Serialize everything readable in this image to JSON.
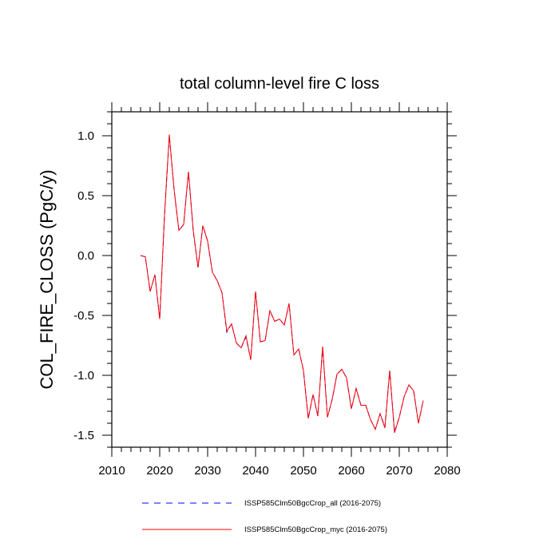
{
  "chart_data": {
    "type": "line",
    "title": "total column-level fire C loss",
    "xlabel": "",
    "ylabel": "COL_FIRE_CLOSS  (PgC/y)",
    "xlim": [
      2010,
      2080
    ],
    "ylim": [
      -1.6,
      1.2
    ],
    "x_ticks": [
      2010,
      2020,
      2030,
      2040,
      2050,
      2060,
      2070,
      2080
    ],
    "x_tick_labels": [
      "2010",
      "2020",
      "2030",
      "2040",
      "2050",
      "2060",
      "2070",
      "2080"
    ],
    "y_ticks": [
      -1.5,
      -1.0,
      -0.5,
      0.0,
      0.5,
      1.0
    ],
    "y_tick_labels": [
      "-1.5",
      "-1.0",
      "-0.5",
      "0.0",
      "0.5",
      "1.0"
    ],
    "grid": false,
    "legend_position": "bottom",
    "x": [
      2016,
      2017,
      2018,
      2019,
      2020,
      2021,
      2022,
      2023,
      2024,
      2025,
      2026,
      2027,
      2028,
      2029,
      2030,
      2031,
      2032,
      2033,
      2034,
      2035,
      2036,
      2037,
      2038,
      2039,
      2040,
      2041,
      2042,
      2043,
      2044,
      2045,
      2046,
      2047,
      2048,
      2049,
      2050,
      2051,
      2052,
      2053,
      2054,
      2055,
      2056,
      2057,
      2058,
      2059,
      2060,
      2061,
      2062,
      2063,
      2064,
      2065,
      2066,
      2067,
      2068,
      2069,
      2070,
      2071,
      2072,
      2073,
      2074,
      2075
    ],
    "series": [
      {
        "name": "ISSP585Clm50BgcCrop_all (2016-2075)",
        "color": "#0000ff",
        "dash": "dashed",
        "values": [
          0.0,
          -0.01,
          -0.3,
          -0.16,
          -0.53,
          0.33,
          1.0,
          0.55,
          0.21,
          0.26,
          0.7,
          0.2,
          -0.1,
          0.25,
          0.12,
          -0.14,
          -0.21,
          -0.31,
          -0.64,
          -0.57,
          -0.73,
          -0.77,
          -0.68,
          -0.87,
          -0.3,
          -0.72,
          -0.71,
          -0.46,
          -0.55,
          -0.53,
          -0.58,
          -0.4,
          -0.83,
          -0.78,
          -0.96,
          -1.36,
          -1.16,
          -1.34,
          -0.76,
          -1.35,
          -1.2,
          -0.99,
          -0.95,
          -1.02,
          -1.28,
          -1.11,
          -1.25,
          -1.25,
          -1.37,
          -1.45,
          -1.32,
          -1.43,
          -0.96,
          -1.47,
          -1.35,
          -1.18,
          -1.08,
          -1.13,
          -1.4,
          -1.21
        ]
      },
      {
        "name": "ISSP585Clm50BgcCrop_myc (2016-2075)",
        "color": "#ff0000",
        "dash": "solid",
        "values": [
          0.0,
          -0.01,
          -0.3,
          -0.16,
          -0.53,
          0.34,
          1.01,
          0.55,
          0.21,
          0.26,
          0.7,
          0.21,
          -0.1,
          0.25,
          0.12,
          -0.14,
          -0.21,
          -0.31,
          -0.63,
          -0.57,
          -0.73,
          -0.77,
          -0.67,
          -0.87,
          -0.3,
          -0.72,
          -0.71,
          -0.46,
          -0.55,
          -0.53,
          -0.58,
          -0.4,
          -0.83,
          -0.78,
          -0.96,
          -1.36,
          -1.16,
          -1.34,
          -0.76,
          -1.35,
          -1.2,
          -0.99,
          -0.95,
          -1.02,
          -1.28,
          -1.11,
          -1.25,
          -1.25,
          -1.37,
          -1.45,
          -1.32,
          -1.44,
          -0.96,
          -1.48,
          -1.35,
          -1.18,
          -1.08,
          -1.13,
          -1.4,
          -1.21
        ]
      }
    ]
  }
}
